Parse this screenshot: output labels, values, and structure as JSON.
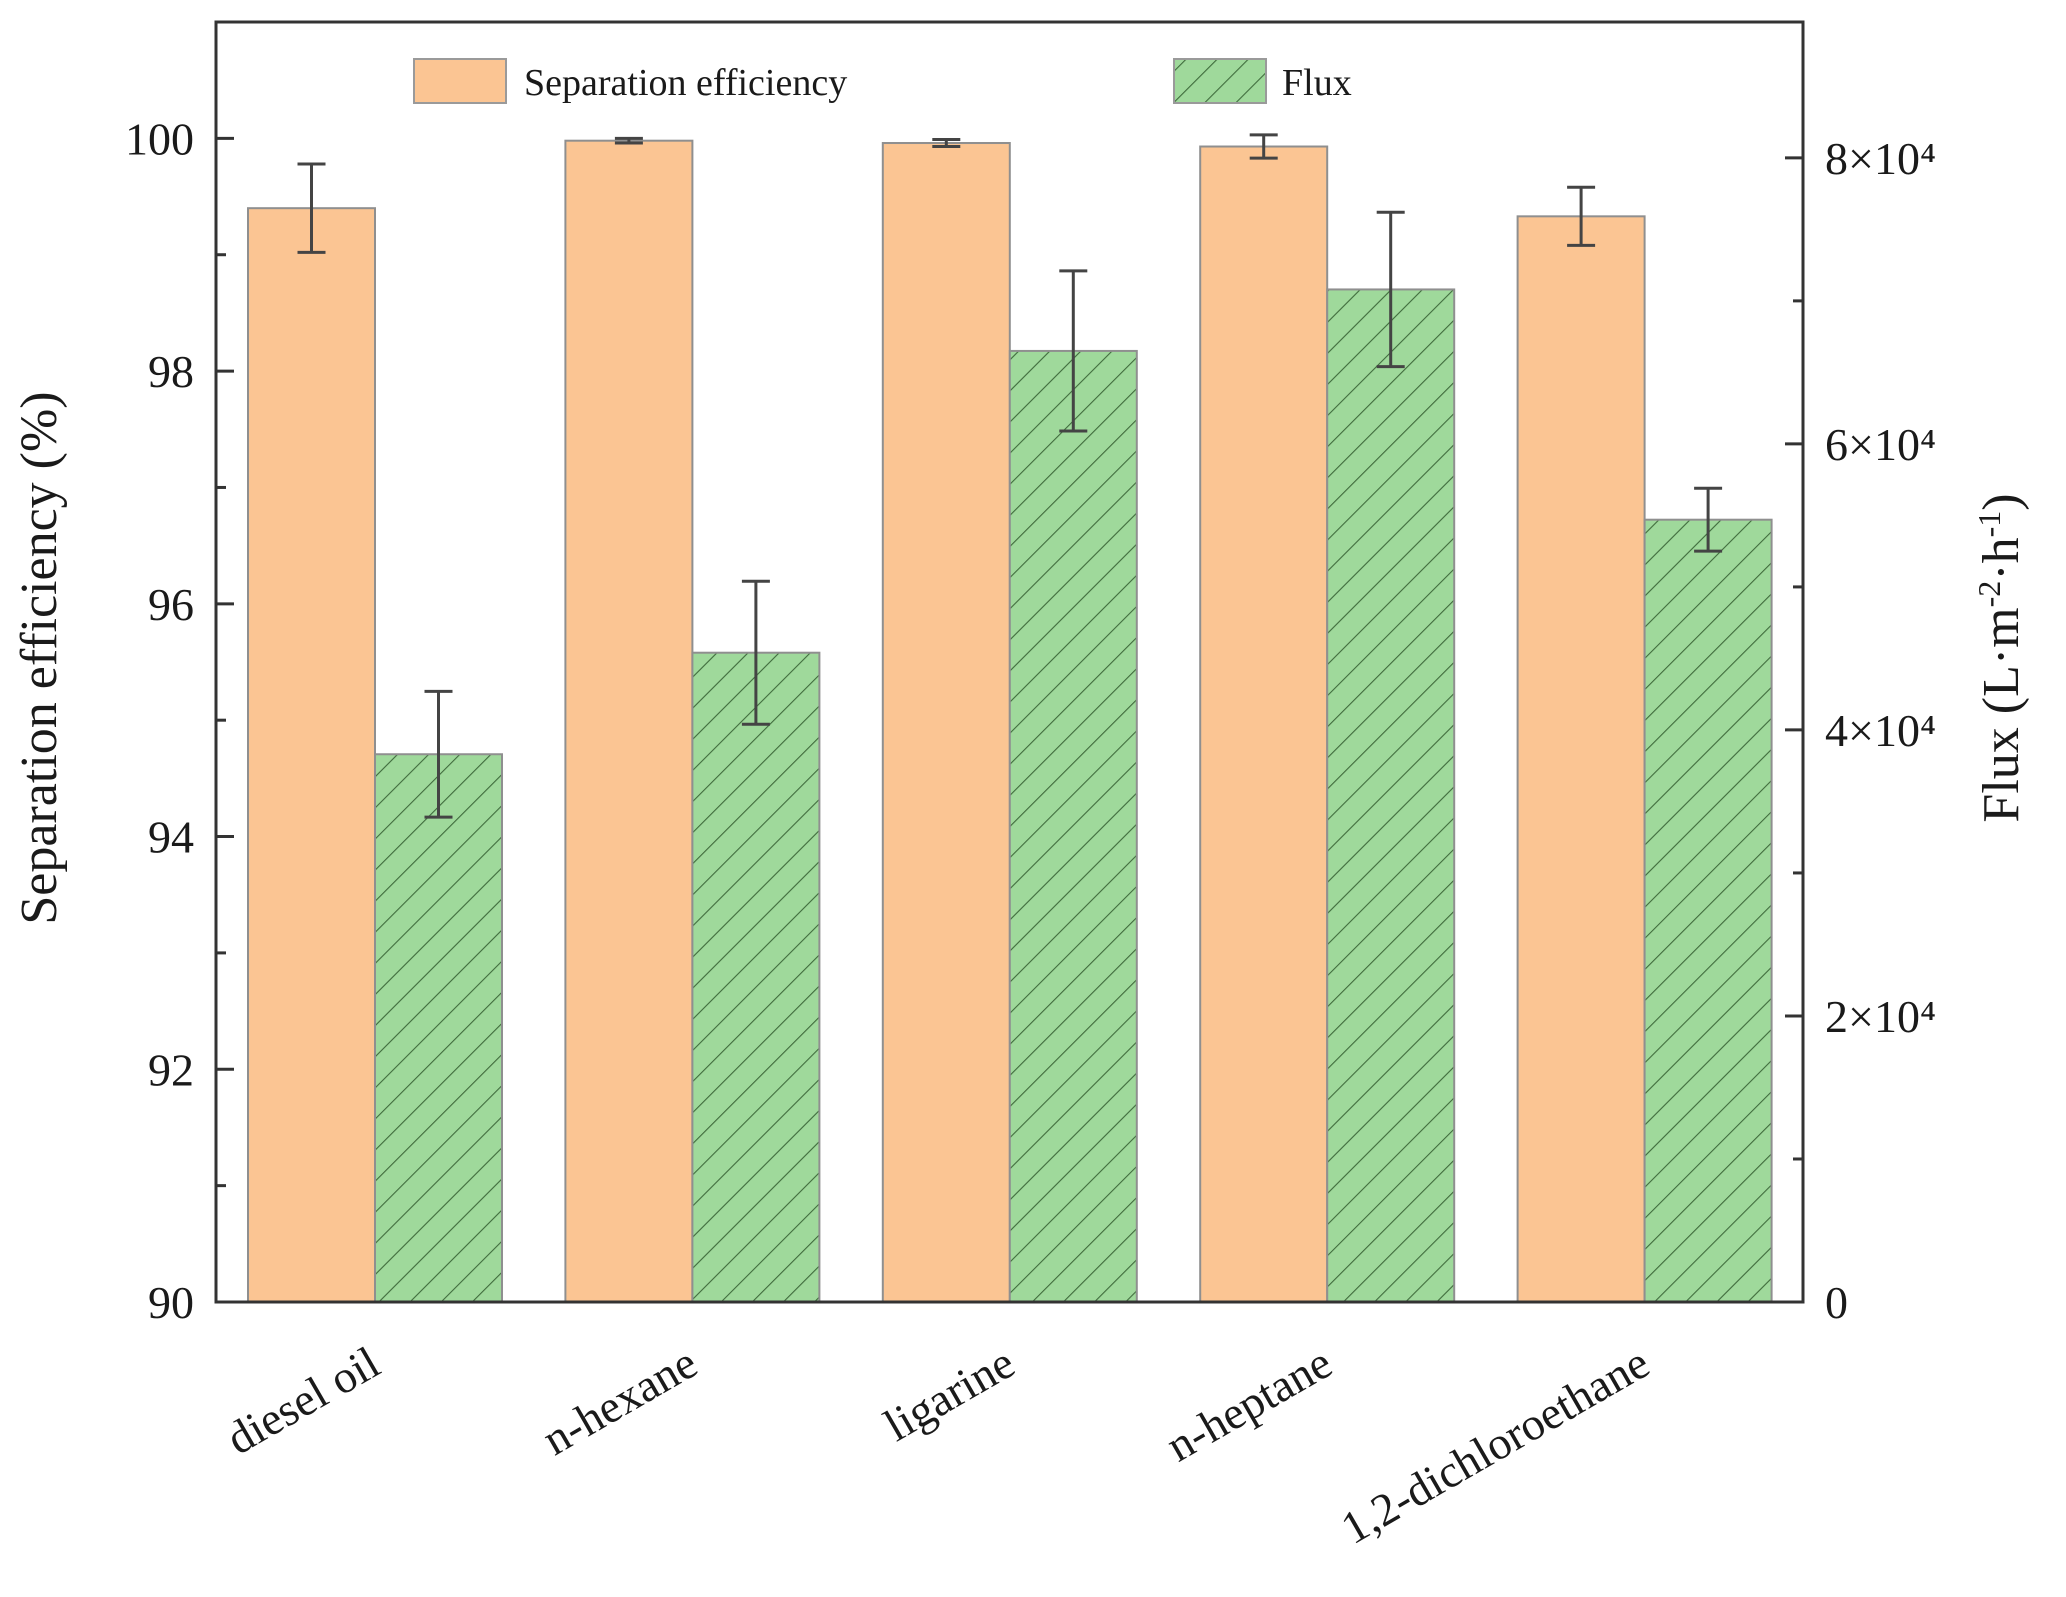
{
  "chart_data": {
    "type": "bar",
    "categories": [
      "diesel oil",
      "n-hexane",
      "ligarine",
      "n-heptane",
      "1,2-dichloroethane"
    ],
    "series": [
      {
        "name": "Separation efficiency",
        "axis": "left",
        "color": "#fbc593",
        "pattern": "solid",
        "values": [
          99.4,
          99.98,
          99.96,
          99.93,
          99.33
        ],
        "errors": [
          0.38,
          0.02,
          0.03,
          0.1,
          0.25
        ]
      },
      {
        "name": "Flux",
        "axis": "right",
        "color": "#9fd99b",
        "pattern": "hatched",
        "values": [
          38300,
          45400,
          66500,
          70800,
          54700
        ],
        "errors": [
          4400,
          5000,
          5600,
          5400,
          2200
        ]
      }
    ],
    "y_left": {
      "label": "Separation efficiency (%)",
      "range": [
        90,
        101
      ],
      "ticks": [
        90,
        92,
        94,
        96,
        98,
        100
      ],
      "tick_labels": [
        "90",
        "92",
        "94",
        "96",
        "98",
        "100"
      ]
    },
    "y_right": {
      "label_parts": [
        "Flux (L·m",
        "-2",
        "·h",
        "-1",
        ")"
      ],
      "range": [
        0,
        89500
      ],
      "ticks": [
        0,
        20000,
        40000,
        60000,
        80000
      ],
      "minor_ticks": [
        10000,
        30000,
        50000,
        70000
      ],
      "tick_labels": [
        "0",
        "2×10⁴",
        "4×10⁴",
        "6×10⁴",
        "8×10⁴"
      ]
    },
    "legend": {
      "position": "top-center",
      "entries": [
        "Separation efficiency",
        "Flux"
      ]
    }
  }
}
